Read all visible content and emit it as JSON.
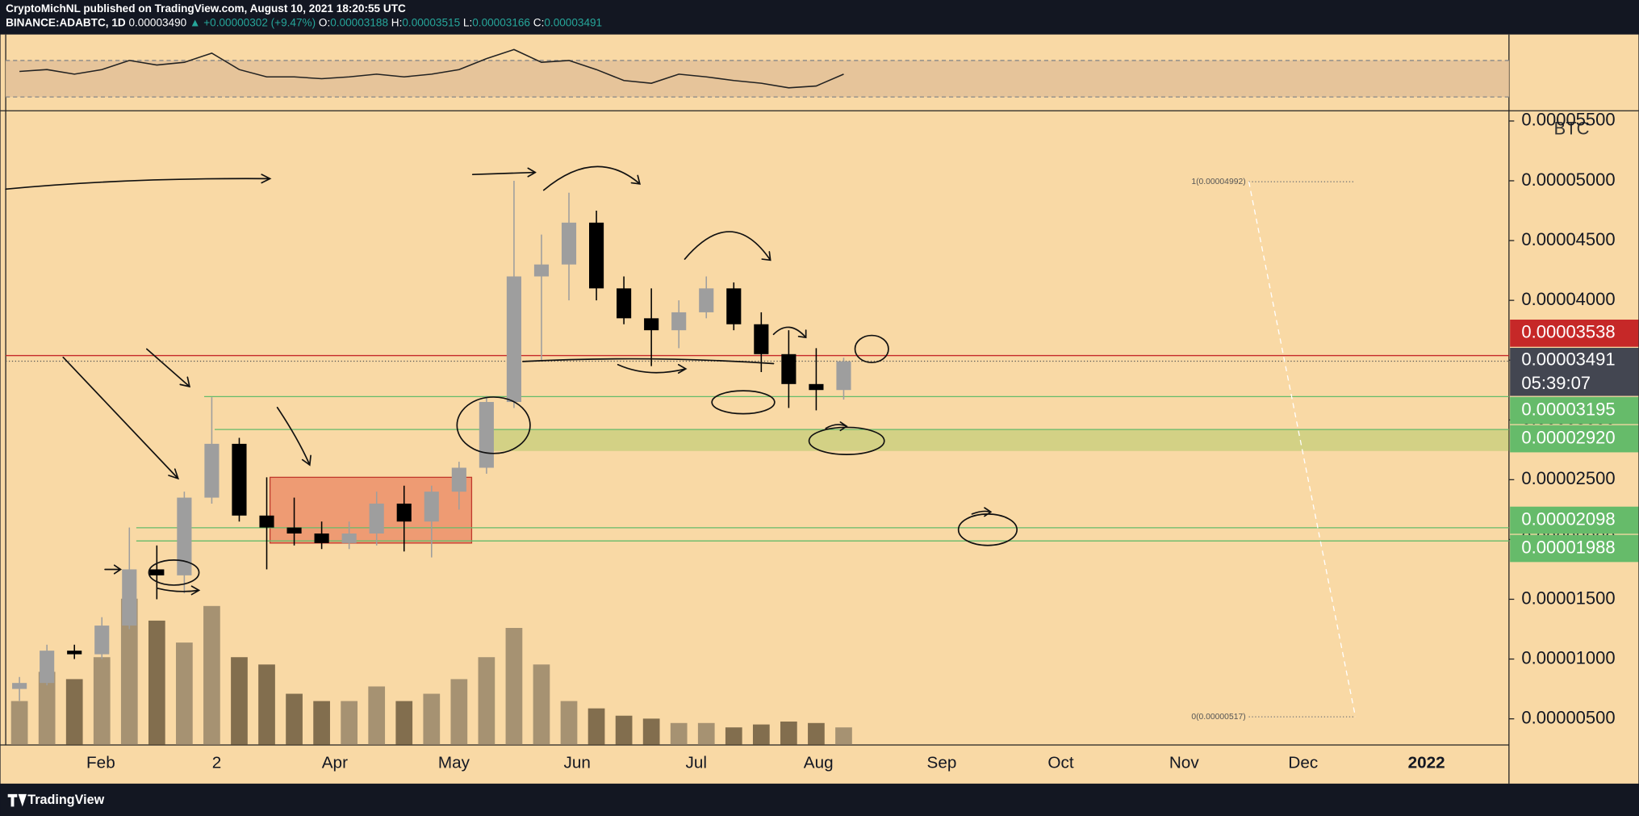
{
  "header": {
    "publisher": "CryptoMichNL published on TradingView.com, August 10, 2021 18:20:55 UTC",
    "symbol": "BINANCE:ADABTC, 1D",
    "last": "0.00003490",
    "change": "▲ +0.00000302 (+9.47%)",
    "ohlc": [
      {
        "key": "O:",
        "value": "0.00003188"
      },
      {
        "key": "H:",
        "value": "0.00003515"
      },
      {
        "key": "L:",
        "value": "0.00003166"
      },
      {
        "key": "C:",
        "value": "0.00003491"
      }
    ]
  },
  "chart_data": {
    "type": "candlestick",
    "unit": "BTC",
    "categories": [
      null,
      null,
      null,
      null,
      null,
      null,
      null,
      null,
      null,
      null,
      null,
      null,
      null,
      null,
      null,
      null,
      null,
      null,
      null,
      null,
      null,
      null,
      null,
      null,
      null,
      null,
      null,
      null,
      null,
      null,
      null
    ],
    "open": [
      7.5e-06,
      8e-06,
      1.07e-05,
      1.04e-05,
      1.28e-05,
      1.75e-05,
      1.7e-05,
      2.35e-05,
      2.8e-05,
      2.2e-05,
      2.1e-05,
      2.05e-05,
      1.97e-05,
      2.05e-05,
      2.3e-05,
      2.15e-05,
      2.4e-05,
      2.6e-05,
      3.15e-05,
      4.2e-05,
      4.3e-05,
      4.65e-05,
      4.1e-05,
      3.85e-05,
      3.75e-05,
      3.9e-05,
      4.1e-05,
      3.8e-05,
      3.55e-05,
      3.3e-05,
      3.25e-05
    ],
    "high": [
      8.5e-06,
      1.12e-05,
      1.12e-05,
      1.35e-05,
      2.1e-05,
      1.95e-05,
      2.4e-05,
      3.19e-05,
      2.85e-05,
      2.52e-05,
      2.35e-05,
      2.15e-05,
      2.15e-05,
      2.4e-05,
      2.45e-05,
      2.45e-05,
      2.65e-05,
      3.2e-05,
      5e-05,
      4.55e-05,
      4.9e-05,
      4.75e-05,
      4.2e-05,
      4.1e-05,
      4e-05,
      4.2e-05,
      4.15e-05,
      3.9e-05,
      3.75e-05,
      3.6e-05,
      3.52e-05
    ],
    "low": [
      6.5e-06,
      7.8e-06,
      1e-05,
      1e-05,
      1.25e-05,
      1.5e-05,
      1.55e-05,
      2.3e-05,
      2.15e-05,
      1.75e-05,
      1.95e-05,
      1.92e-05,
      1.92e-05,
      1.95e-05,
      1.9e-05,
      1.85e-05,
      2.25e-05,
      2.55e-05,
      3.1e-05,
      3.5e-05,
      4e-05,
      4e-05,
      3.8e-05,
      3.45e-05,
      3.6e-05,
      3.85e-05,
      3.75e-05,
      3.4e-05,
      3.1e-05,
      3.08e-05,
      3.17e-05
    ],
    "close": [
      8e-06,
      1.07e-05,
      1.04e-05,
      1.28e-05,
      1.75e-05,
      1.7e-05,
      2.35e-05,
      2.8e-05,
      2.2e-05,
      2.1e-05,
      2.05e-05,
      1.97e-05,
      2.05e-05,
      2.3e-05,
      2.15e-05,
      2.4e-05,
      2.6e-05,
      3.15e-05,
      4.2e-05,
      4.3e-05,
      4.65e-05,
      4.1e-05,
      3.85e-05,
      3.75e-05,
      3.9e-05,
      4.1e-05,
      3.8e-05,
      3.55e-05,
      3.3e-05,
      3.25e-05,
      3.49e-05
    ],
    "up_color": "#9e9e9e",
    "down_color": "#000000",
    "volume": [
      30,
      50,
      45,
      60,
      100,
      85,
      70,
      95,
      60,
      55,
      35,
      30,
      30,
      40,
      30,
      35,
      45,
      60,
      80,
      55,
      30,
      25,
      20,
      18,
      15,
      15,
      12,
      14,
      16,
      15,
      12
    ],
    "rsi": {
      "values": [
        58,
        60,
        55,
        60,
        70,
        65,
        68,
        78,
        60,
        52,
        52,
        50,
        52,
        55,
        52,
        55,
        60,
        72,
        82,
        68,
        70,
        60,
        48,
        45,
        55,
        52,
        48,
        45,
        40,
        42,
        55
      ],
      "ylim": [
        16,
        98.5
      ],
      "band": [
        30,
        70
      ]
    },
    "ylim": [
      2.815e-06,
      5.577e-05
    ],
    "yticks": [
      {
        "value": 5e-06,
        "label": "0.00000500"
      },
      {
        "value": 1e-05,
        "label": "0.00001000"
      },
      {
        "value": 1.5e-05,
        "label": "0.00001500"
      },
      {
        "value": 2e-05,
        "label": "0.00002000"
      },
      {
        "value": 2.5e-05,
        "label": "0.00002500"
      },
      {
        "value": 3e-05,
        "label": "0.00003000"
      },
      {
        "value": 3.5e-05,
        "label": "0.00003500"
      },
      {
        "value": 4e-05,
        "label": "0.00004000"
      },
      {
        "value": 4.5e-05,
        "label": "0.00004500"
      },
      {
        "value": 5e-05,
        "label": "0.00005000"
      },
      {
        "value": 5.5e-05,
        "label": "0.00005500"
      }
    ],
    "xticks": [
      "Feb",
      "2",
      "Apr",
      "May",
      "Jun",
      "Jul",
      "Aug",
      "Sep",
      "Oct",
      "Nov",
      "Dec",
      "2022"
    ],
    "levels": [
      {
        "value": 3.538e-05,
        "label": "0.00003538",
        "color": "#c62828"
      },
      {
        "value": 3.491e-05,
        "label": "0.00003491",
        "color": "#434651"
      },
      {
        "value": 3.195e-05,
        "label": "0.00003195",
        "color": "#66bb6a"
      },
      {
        "value": 2.92e-05,
        "label": "0.00002920",
        "color": "#66bb6a"
      },
      {
        "value": 2.098e-05,
        "label": "0.00002098",
        "color": "#66bb6a"
      },
      {
        "value": 1.988e-05,
        "label": "0.00001988",
        "color": "#66bb6a"
      }
    ],
    "countdown": "05:39:07",
    "zones": [
      {
        "low": 2.74e-05,
        "high": 2.92e-05,
        "color": "#8bc34a"
      },
      {
        "low": 1.97e-05,
        "high": 2.52e-05,
        "color": "#e5674a"
      }
    ],
    "fib": [
      {
        "value": 4.992e-05,
        "label": "1(0.00004992)"
      },
      {
        "value": 5.17e-06,
        "label": "0(0.00000517)"
      }
    ]
  },
  "footer": {
    "brand": "TradingView"
  }
}
